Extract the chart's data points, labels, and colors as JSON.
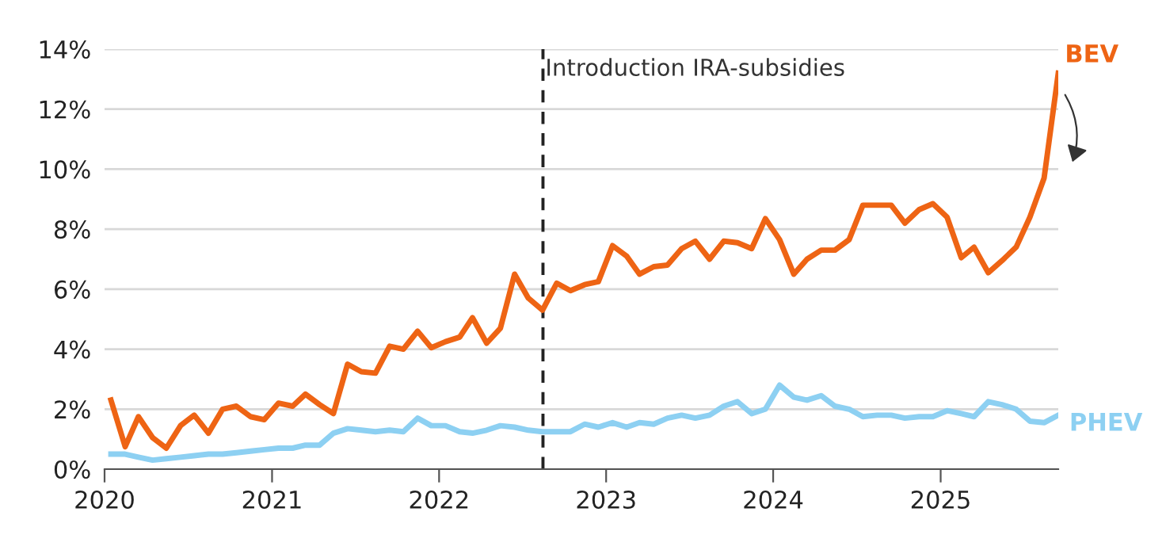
{
  "chart_data": {
    "type": "line",
    "x": [
      "2020-01-15",
      "2020-02-15",
      "2020-03-15",
      "2020-04-15",
      "2020-05-15",
      "2020-06-15",
      "2020-07-15",
      "2020-08-15",
      "2020-09-15",
      "2020-10-15",
      "2020-11-15",
      "2020-12-15",
      "2021-01-15",
      "2021-02-15",
      "2021-03-15",
      "2021-04-15",
      "2021-05-15",
      "2021-06-15",
      "2021-07-15",
      "2021-08-15",
      "2021-09-15",
      "2021-10-15",
      "2021-11-15",
      "2021-12-15",
      "2022-01-15",
      "2022-02-15",
      "2022-03-15",
      "2022-04-15",
      "2022-05-15",
      "2022-06-15",
      "2022-07-15",
      "2022-08-15",
      "2022-09-15",
      "2022-10-15",
      "2022-11-15",
      "2022-12-15",
      "2023-01-15",
      "2023-02-15",
      "2023-03-15",
      "2023-04-15",
      "2023-05-15",
      "2023-06-15",
      "2023-07-15",
      "2023-08-15",
      "2023-09-15",
      "2023-10-15",
      "2023-11-15",
      "2023-12-15",
      "2024-01-15",
      "2024-02-15",
      "2024-03-15",
      "2024-04-15",
      "2024-05-15",
      "2024-06-15",
      "2024-07-15",
      "2024-08-15",
      "2024-09-15",
      "2024-10-15",
      "2024-11-15",
      "2024-12-15",
      "2025-01-15",
      "2025-02-15",
      "2025-03-15",
      "2025-04-15",
      "2025-05-15",
      "2025-06-15",
      "2025-07-15",
      "2025-08-15",
      "2025-09-15"
    ],
    "series": [
      {
        "name": "BEV",
        "color": "#ee6414",
        "values": [
          2.3,
          0.75,
          1.75,
          1.05,
          0.7,
          1.45,
          1.8,
          1.2,
          2.0,
          2.1,
          1.75,
          1.65,
          2.2,
          2.1,
          2.5,
          2.15,
          1.85,
          3.5,
          3.25,
          3.2,
          4.1,
          4.0,
          4.6,
          4.05,
          4.25,
          4.4,
          5.05,
          4.2,
          4.7,
          6.5,
          5.7,
          5.3,
          6.2,
          5.95,
          6.15,
          6.25,
          7.45,
          7.1,
          6.5,
          6.75,
          6.8,
          7.35,
          7.6,
          7.0,
          7.6,
          7.55,
          7.35,
          8.35,
          7.65,
          6.5,
          7.0,
          7.3,
          7.3,
          7.65,
          8.8,
          8.8,
          8.8,
          8.2,
          8.65,
          8.85,
          8.4,
          7.05,
          7.4,
          6.55,
          6.95,
          7.4,
          8.4,
          9.7,
          13.2
        ]
      },
      {
        "name": "PHEV",
        "color": "#8dd0f2",
        "values": [
          0.5,
          0.5,
          0.4,
          0.3,
          0.35,
          0.4,
          0.45,
          0.5,
          0.5,
          0.55,
          0.6,
          0.65,
          0.7,
          0.7,
          0.8,
          0.8,
          1.2,
          1.35,
          1.3,
          1.25,
          1.3,
          1.25,
          1.7,
          1.45,
          1.45,
          1.25,
          1.2,
          1.3,
          1.45,
          1.4,
          1.3,
          1.25,
          1.25,
          1.25,
          1.5,
          1.4,
          1.55,
          1.4,
          1.55,
          1.5,
          1.7,
          1.8,
          1.7,
          1.8,
          2.1,
          2.25,
          1.85,
          2.0,
          2.8,
          2.4,
          2.3,
          2.45,
          2.1,
          2.0,
          1.75,
          1.8,
          1.8,
          1.7,
          1.75,
          1.75,
          1.95,
          1.85,
          1.75,
          2.25,
          2.15,
          2.0,
          1.6,
          1.55,
          1.8
        ]
      }
    ],
    "xlim": [
      "2020-01",
      "2025-09-15"
    ],
    "xticks": [
      "2020",
      "2021",
      "2022",
      "2023",
      "2024",
      "2025"
    ],
    "ylim": [
      0,
      14
    ],
    "yticks": [
      {
        "value": 0,
        "label": "0%"
      },
      {
        "value": 2,
        "label": "2%"
      },
      {
        "value": 4,
        "label": "4%"
      },
      {
        "value": 6,
        "label": "6%"
      },
      {
        "value": 8,
        "label": "8%"
      },
      {
        "value": 10,
        "label": "10%"
      },
      {
        "value": 12,
        "label": "12%"
      },
      {
        "value": 14,
        "label": "14%"
      }
    ],
    "grid": "y",
    "legend": false,
    "line_style": "solid",
    "ref_lines": [
      {
        "axis": "x",
        "value": "2022-08-16",
        "label": "Introduction IRA-subsidies",
        "color": "#222222",
        "line_style": "dashed"
      }
    ]
  }
}
